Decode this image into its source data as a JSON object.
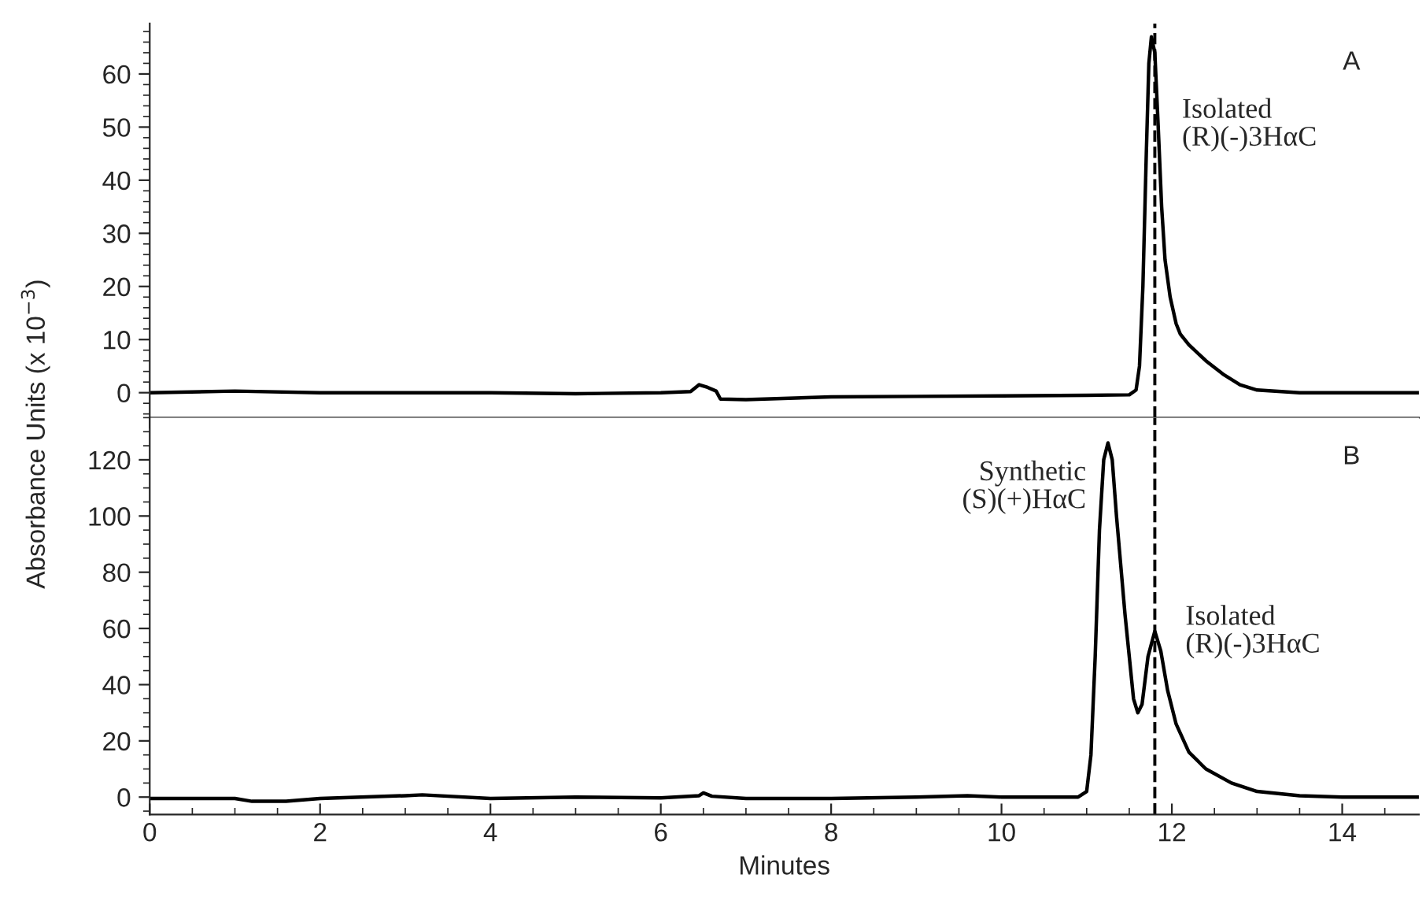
{
  "chart_data": [
    {
      "type": "line",
      "ylabel": "Absorbance Units (x 10$^{−3}$)",
      "tick_labels": "y",
      "line_style": "solid",
      "marker": "none",
      "grid": false,
      "legend": false,
      "xlim": [
        0,
        14.9
      ],
      "xticks": [
        0,
        2,
        4,
        6,
        8,
        10,
        12,
        14
      ],
      "ylim": [
        -4.7,
        69.5
      ],
      "yticks": [
        0,
        10,
        20,
        30,
        40,
        50,
        60
      ],
      "series": [
        {
          "color": "#000000",
          "x": [
            0,
            1,
            2,
            3,
            4,
            5,
            6,
            6.35,
            6.45,
            6.55,
            6.65,
            6.7,
            7.0,
            8,
            9,
            10,
            11,
            11.5,
            11.58,
            11.62,
            11.66,
            11.7,
            11.73,
            11.76,
            11.8,
            11.84,
            11.88,
            11.92,
            11.98,
            12.05,
            12.1,
            12.2,
            12.4,
            12.6,
            12.8,
            13.0,
            13.5,
            14,
            14.9
          ],
          "values": [
            0,
            0.3,
            0,
            0,
            0,
            -0.2,
            0,
            0.2,
            1.5,
            1.0,
            0.3,
            -1.2,
            -1.3,
            -0.8,
            -0.7,
            -0.6,
            -0.5,
            -0.4,
            0.5,
            5,
            20,
            45,
            62,
            67,
            64,
            50,
            35,
            25,
            18,
            13,
            11,
            9,
            6,
            3.5,
            1.5,
            0.5,
            0,
            0,
            0
          ]
        }
      ],
      "ref_lines": [
        {
          "axis": "x",
          "value": 11.8,
          "color": "#000000",
          "line_style": "dashed"
        }
      ],
      "annotations": [
        {
          "text": "Isolated\n(R)(-)3HαC",
          "x": 11.76,
          "y": 67
        },
        "A"
      ]
    },
    {
      "type": "line",
      "xlabel": "Minutes",
      "line_style": "solid",
      "marker": "none",
      "grid": false,
      "legend": false,
      "xlim": [
        0,
        14.9
      ],
      "xticks": [
        0,
        2,
        4,
        6,
        8,
        10,
        12,
        14
      ],
      "ylim": [
        -6.2,
        135
      ],
      "yticks": [
        0,
        20,
        40,
        60,
        80,
        100,
        120
      ],
      "series": [
        {
          "color": "#000000",
          "x": [
            0,
            1,
            1.2,
            1.6,
            2,
            3,
            3.2,
            4,
            5,
            6,
            6.45,
            6.5,
            6.6,
            7,
            8,
            9,
            9.6,
            10,
            10.9,
            11.0,
            11.05,
            11.1,
            11.15,
            11.2,
            11.25,
            11.3,
            11.35,
            11.45,
            11.55,
            11.6,
            11.65,
            11.72,
            11.8,
            11.87,
            11.95,
            12.05,
            12.2,
            12.4,
            12.7,
            13,
            13.5,
            14,
            14.9
          ],
          "values": [
            -0.5,
            -0.5,
            -1.5,
            -1.5,
            -0.5,
            0.5,
            0.8,
            -0.5,
            0,
            -0.3,
            0.5,
            1.5,
            0.3,
            -0.5,
            -0.5,
            0,
            0.5,
            0,
            0,
            2,
            15,
            50,
            95,
            120,
            126,
            120,
            100,
            65,
            35,
            30,
            33,
            50,
            59,
            52,
            38,
            26,
            16,
            10,
            5,
            2,
            0.5,
            0,
            0
          ]
        }
      ],
      "ref_lines": [
        {
          "axis": "x",
          "value": 11.8,
          "color": "#000000",
          "line_style": "dashed"
        }
      ],
      "annotations": [
        {
          "text": "Synthetic\n(S)(+)HαC",
          "x": 11.25,
          "y": 126
        },
        {
          "text": "Isolated\n(R)(-)3HαC",
          "x": 11.8,
          "y": 59
        },
        "B"
      ]
    }
  ]
}
